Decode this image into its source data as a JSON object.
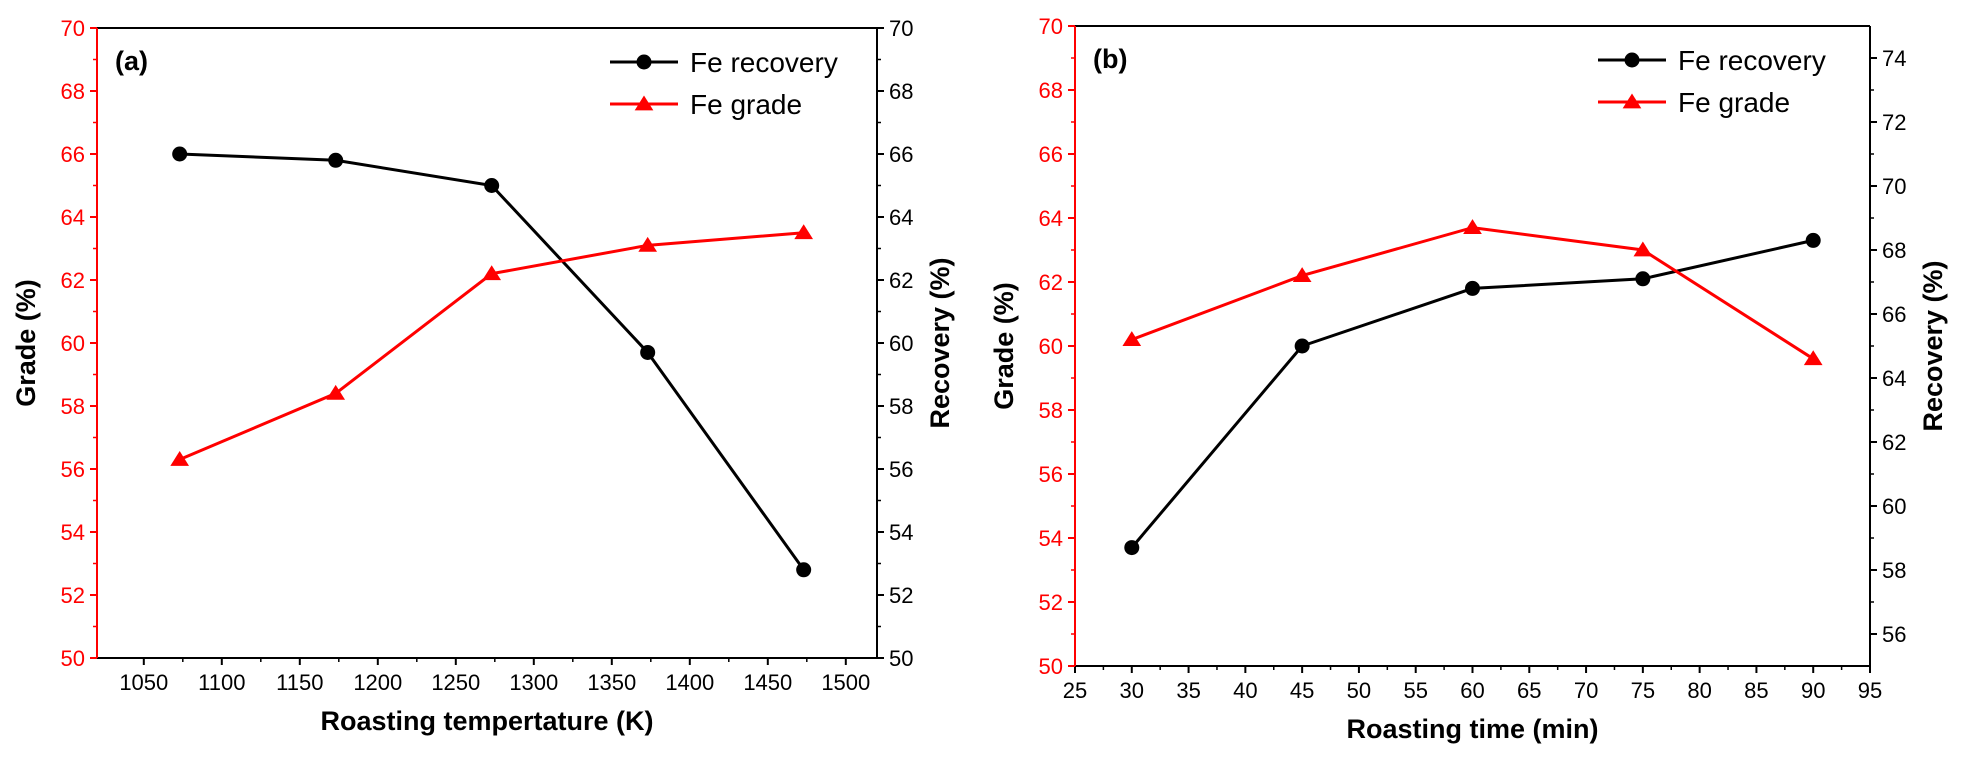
{
  "chart_data": [
    {
      "type": "line",
      "panel_label": "(a)",
      "xlabel": "Roasting tempertature (K)",
      "ylabel_left": "Grade (%)",
      "ylabel_right": "Recovery (%)",
      "xlim": [
        1020,
        1520
      ],
      "xticks": [
        1050,
        1100,
        1150,
        1200,
        1250,
        1300,
        1350,
        1400,
        1450,
        1500
      ],
      "ylim_left": [
        50,
        70
      ],
      "yticks_left": [
        50,
        52,
        54,
        56,
        58,
        60,
        62,
        64,
        66,
        68,
        70
      ],
      "ylim_right": [
        50,
        70
      ],
      "yticks_right": [
        50,
        52,
        54,
        56,
        58,
        60,
        62,
        64,
        66,
        68,
        70
      ],
      "legend_position": "top-right",
      "series": [
        {
          "name": "Fe recovery",
          "axis": "right",
          "color": "#000000",
          "marker": "circle",
          "x": [
            1073,
            1173,
            1273,
            1373,
            1473
          ],
          "values": [
            66.0,
            65.8,
            65.0,
            59.7,
            52.8
          ]
        },
        {
          "name": "Fe grade",
          "axis": "left",
          "color": "#ff0000",
          "marker": "triangle",
          "x": [
            1073,
            1173,
            1273,
            1373,
            1473
          ],
          "values": [
            56.3,
            58.4,
            62.2,
            63.1,
            63.5
          ]
        }
      ]
    },
    {
      "type": "line",
      "panel_label": "(b)",
      "xlabel": "Roasting time (min)",
      "ylabel_left": "Grade (%)",
      "ylabel_right": "Recovery (%)",
      "xlim": [
        25,
        95
      ],
      "xticks": [
        25,
        30,
        35,
        40,
        45,
        50,
        55,
        60,
        65,
        70,
        75,
        80,
        85,
        90,
        95
      ],
      "ylim_left": [
        50,
        70
      ],
      "yticks_left": [
        50,
        52,
        54,
        56,
        58,
        60,
        62,
        64,
        66,
        68,
        70
      ],
      "ylim_right": [
        55,
        75
      ],
      "yticks_right": [
        56,
        58,
        60,
        62,
        64,
        66,
        68,
        70,
        72,
        74
      ],
      "legend_position": "top-right",
      "series": [
        {
          "name": "Fe recovery",
          "axis": "right",
          "color": "#000000",
          "marker": "circle",
          "x": [
            30,
            45,
            60,
            75,
            90
          ],
          "values": [
            58.7,
            65.0,
            66.8,
            67.1,
            68.3
          ]
        },
        {
          "name": "Fe grade",
          "axis": "left",
          "color": "#ff0000",
          "marker": "triangle",
          "x": [
            30,
            45,
            60,
            75,
            90
          ],
          "values": [
            60.2,
            62.2,
            63.7,
            63.0,
            59.6
          ]
        }
      ]
    }
  ]
}
